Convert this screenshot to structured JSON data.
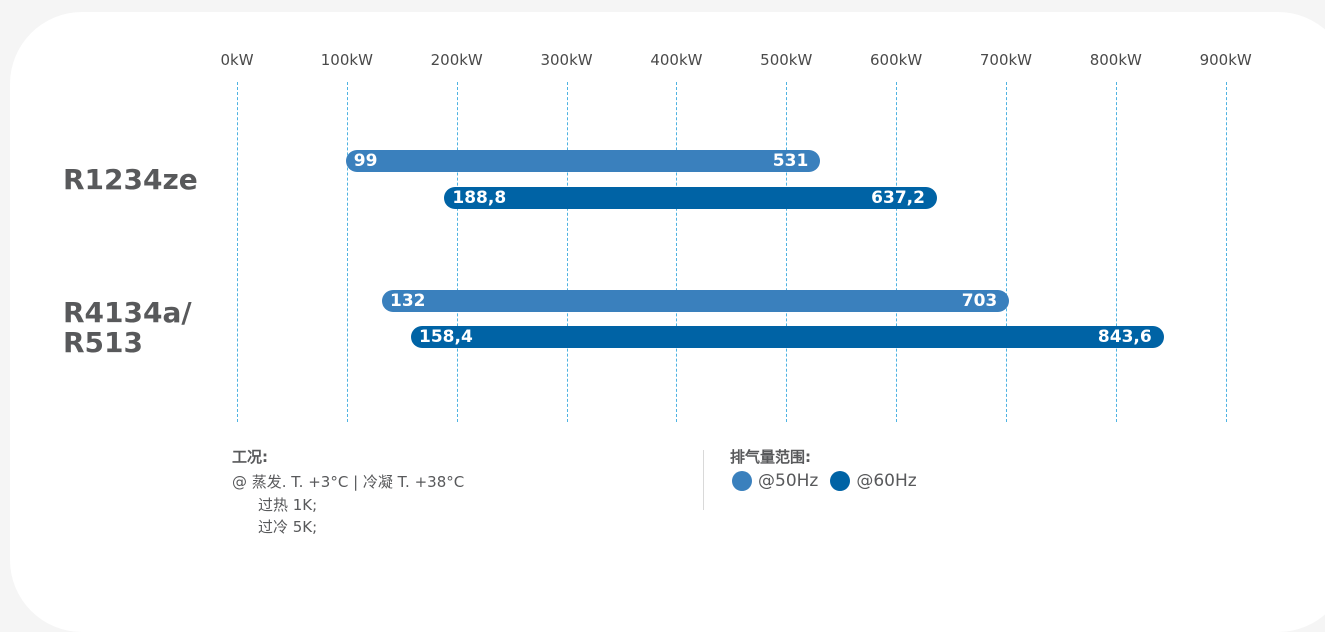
{
  "chart_data": {
    "type": "bar",
    "orientation": "horizontal-range",
    "x_ticks": [
      "0kW",
      "100kW",
      "200kW",
      "300kW",
      "400kW",
      "500kW",
      "600kW",
      "700kW",
      "800kW",
      "900kW"
    ],
    "xlim": [
      0,
      900
    ],
    "grid": true,
    "categories": [
      "R1234ze",
      "R4134a/\nR513"
    ],
    "category_lines": [
      [
        "R1234ze"
      ],
      [
        "R4134a/",
        "R513"
      ]
    ],
    "series": [
      {
        "name": "@50Hz",
        "color": "#3a80bd",
        "ranges": [
          {
            "start": 99,
            "end": 531,
            "start_label": "99",
            "end_label": "531"
          },
          {
            "start": 132,
            "end": 703,
            "start_label": "132",
            "end_label": "703"
          }
        ]
      },
      {
        "name": "@60Hz",
        "color": "#0063a5",
        "ranges": [
          {
            "start": 188.8,
            "end": 637.2,
            "start_label": "188,8",
            "end_label": "637,2"
          },
          {
            "start": 158.4,
            "end": 843.6,
            "start_label": "158,4",
            "end_label": "843,6"
          }
        ]
      }
    ]
  },
  "conditions": {
    "title": "工况:",
    "lines": [
      "@ 蒸发. T. +3°C  |  冷凝 T. +38°C",
      "过热 1K;",
      "过冷 5K;"
    ]
  },
  "legend": {
    "title": "排气量范围:",
    "items": [
      {
        "label": "@50Hz",
        "color": "#3a80bd"
      },
      {
        "label": "@60Hz",
        "color": "#0063a5"
      }
    ]
  }
}
